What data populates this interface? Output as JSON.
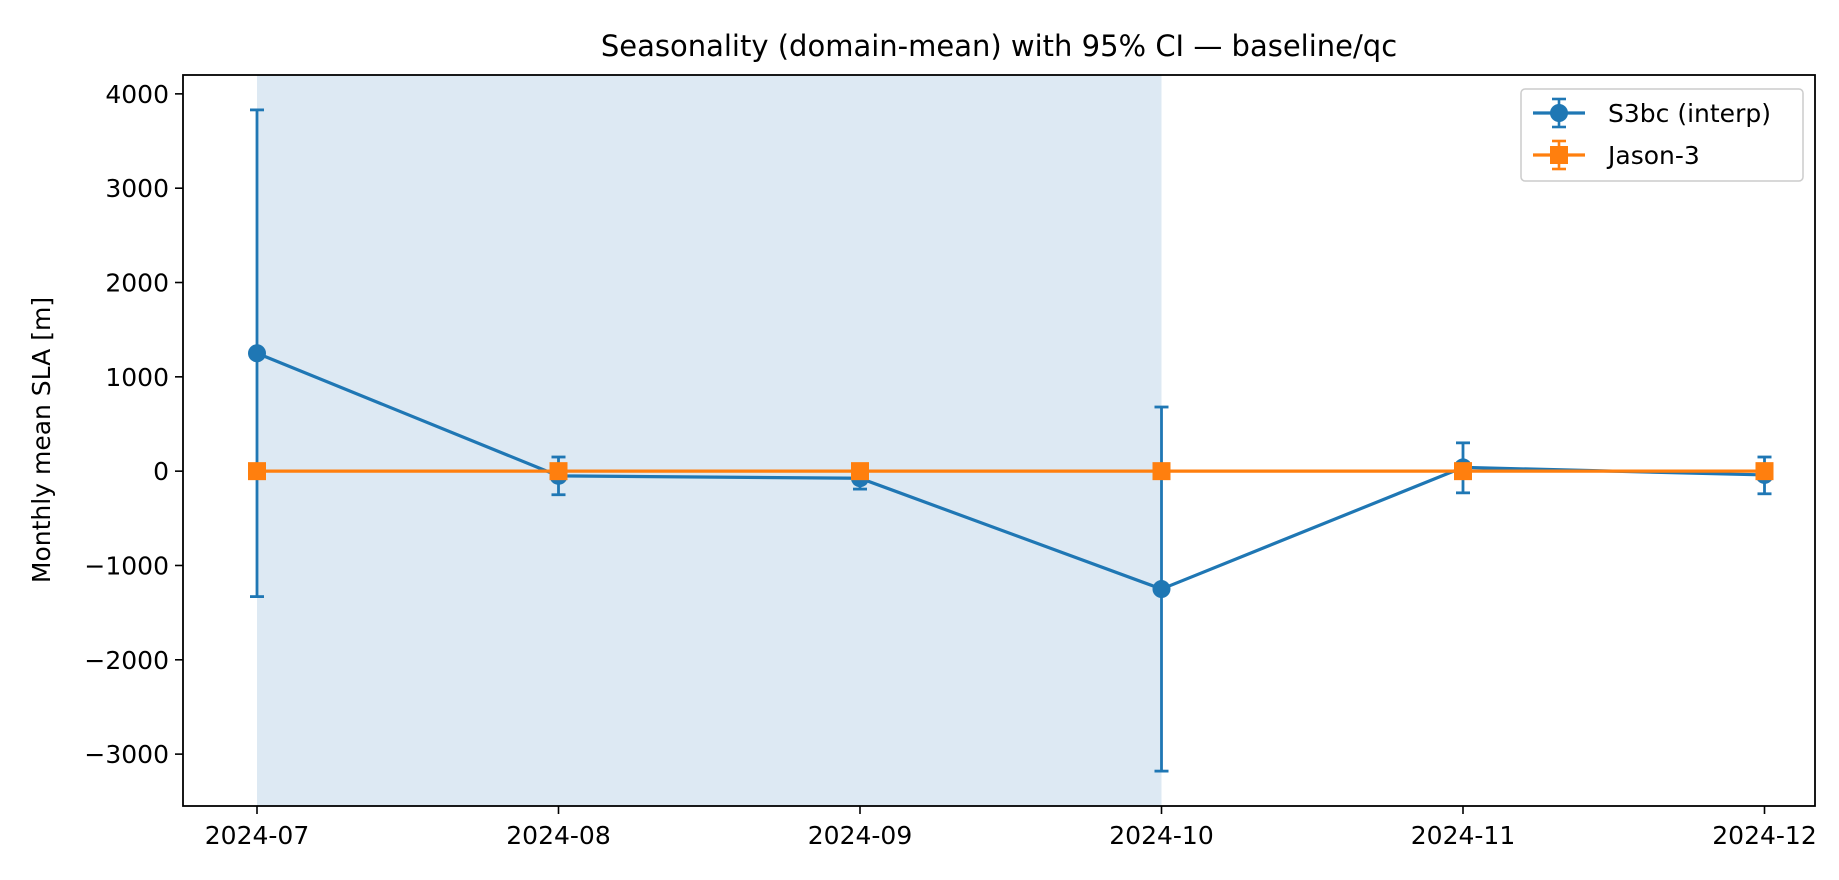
{
  "chart_data": {
    "type": "line",
    "title": "Seasonality (domain-mean) with 95% CI — baseline/qc",
    "xlabel": "",
    "ylabel": "Monthly mean SLA [m]",
    "categories": [
      "2024-07",
      "2024-08",
      "2024-09",
      "2024-10",
      "2024-11",
      "2024-12"
    ],
    "ylim": [
      -3550,
      4200
    ],
    "yticks": [
      4000,
      3000,
      2000,
      1000,
      0,
      -1000,
      -2000,
      -3000
    ],
    "ytick_labels": [
      "4000",
      "3000",
      "2000",
      "1000",
      "0",
      "−1000",
      "−2000",
      "−3000"
    ],
    "grid": false,
    "legend_position": "top-right",
    "shaded_region": {
      "from": "2024-07",
      "to": "2024-10",
      "color": "#dde9f3"
    },
    "series": [
      {
        "name": "S3bc (interp)",
        "color": "#1f77b4",
        "marker": "circle",
        "values": [
          1250,
          -50,
          -75,
          -1250,
          40,
          -40
        ],
        "ci_lower": [
          -1330,
          -250,
          -190,
          -3180,
          -230,
          -240
        ],
        "ci_upper": [
          3830,
          150,
          40,
          680,
          300,
          150
        ]
      },
      {
        "name": "Jason-3",
        "color": "#ff7f0e",
        "marker": "square",
        "values": [
          0,
          0,
          0,
          0,
          0,
          0
        ],
        "ci_lower": [
          -15,
          -15,
          -15,
          -15,
          -15,
          -15
        ],
        "ci_upper": [
          15,
          15,
          15,
          15,
          15,
          15
        ]
      }
    ]
  }
}
